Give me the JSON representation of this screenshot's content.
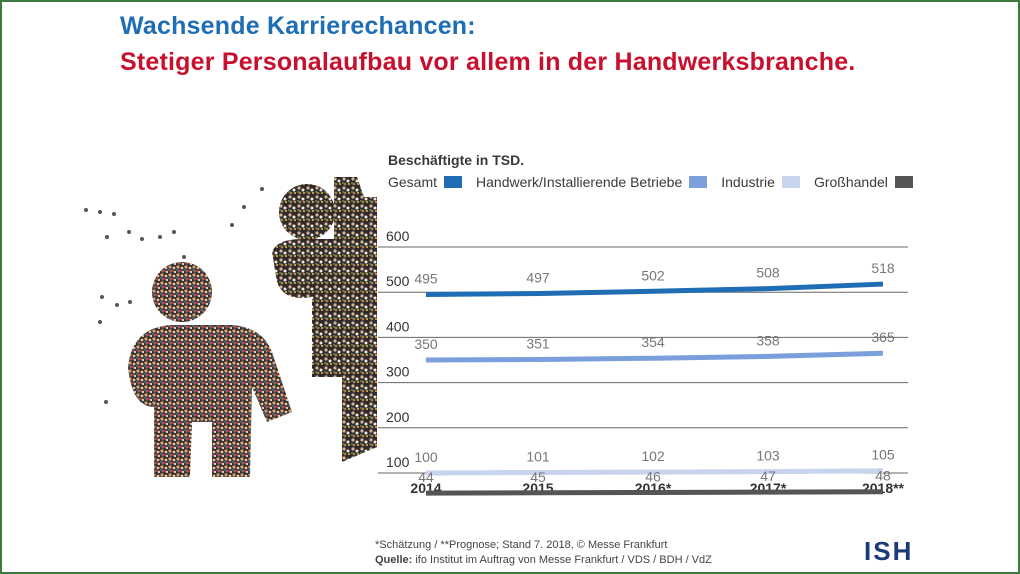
{
  "header": {
    "title_line1": "Wachsende Karrierechancen:",
    "title_line2": "Stetiger Personalaufbau vor allem in der Handwerksbranche."
  },
  "colors": {
    "title_blue": "#1f6db5",
    "title_red": "#c8102e",
    "gesamt": "#1f6db5",
    "handwerk": "#7a9fdc",
    "industrie": "#c8d4ee",
    "grosshandel": "#555555"
  },
  "illustration": {
    "icon": "crowd-people-figures-icon"
  },
  "footer": {
    "note": "*Schätzung / **Prognose; Stand 7. 2018, © Messe Frankfurt",
    "source_label": "Quelle:",
    "source_text": "ifo Institut im Auftrag von Messe Frankfurt / VDS / BDH / VdZ"
  },
  "logo": {
    "text": "ISH"
  },
  "chart_data": {
    "type": "line",
    "ylabel": "Beschäftigte in TSD.",
    "categories": [
      "2014",
      "2015",
      "2016*",
      "2017*",
      "2018**"
    ],
    "ylim": [
      100,
      600
    ],
    "yticks": [
      600,
      500,
      400,
      300,
      200,
      100
    ],
    "grid": true,
    "legend_position": "top",
    "series": [
      {
        "name": "Gesamt",
        "values": [
          495,
          497,
          502,
          508,
          518
        ],
        "color": "#1f6db5"
      },
      {
        "name": "Handwerk/Installierende Betriebe",
        "values": [
          350,
          351,
          354,
          358,
          365
        ],
        "color": "#7a9fdc"
      },
      {
        "name": "Industrie",
        "values": [
          100,
          101,
          102,
          103,
          105
        ],
        "color": "#c8d4ee"
      },
      {
        "name": "Großhandel",
        "values": [
          44,
          45,
          46,
          47,
          48
        ],
        "color": "#555555"
      }
    ]
  }
}
